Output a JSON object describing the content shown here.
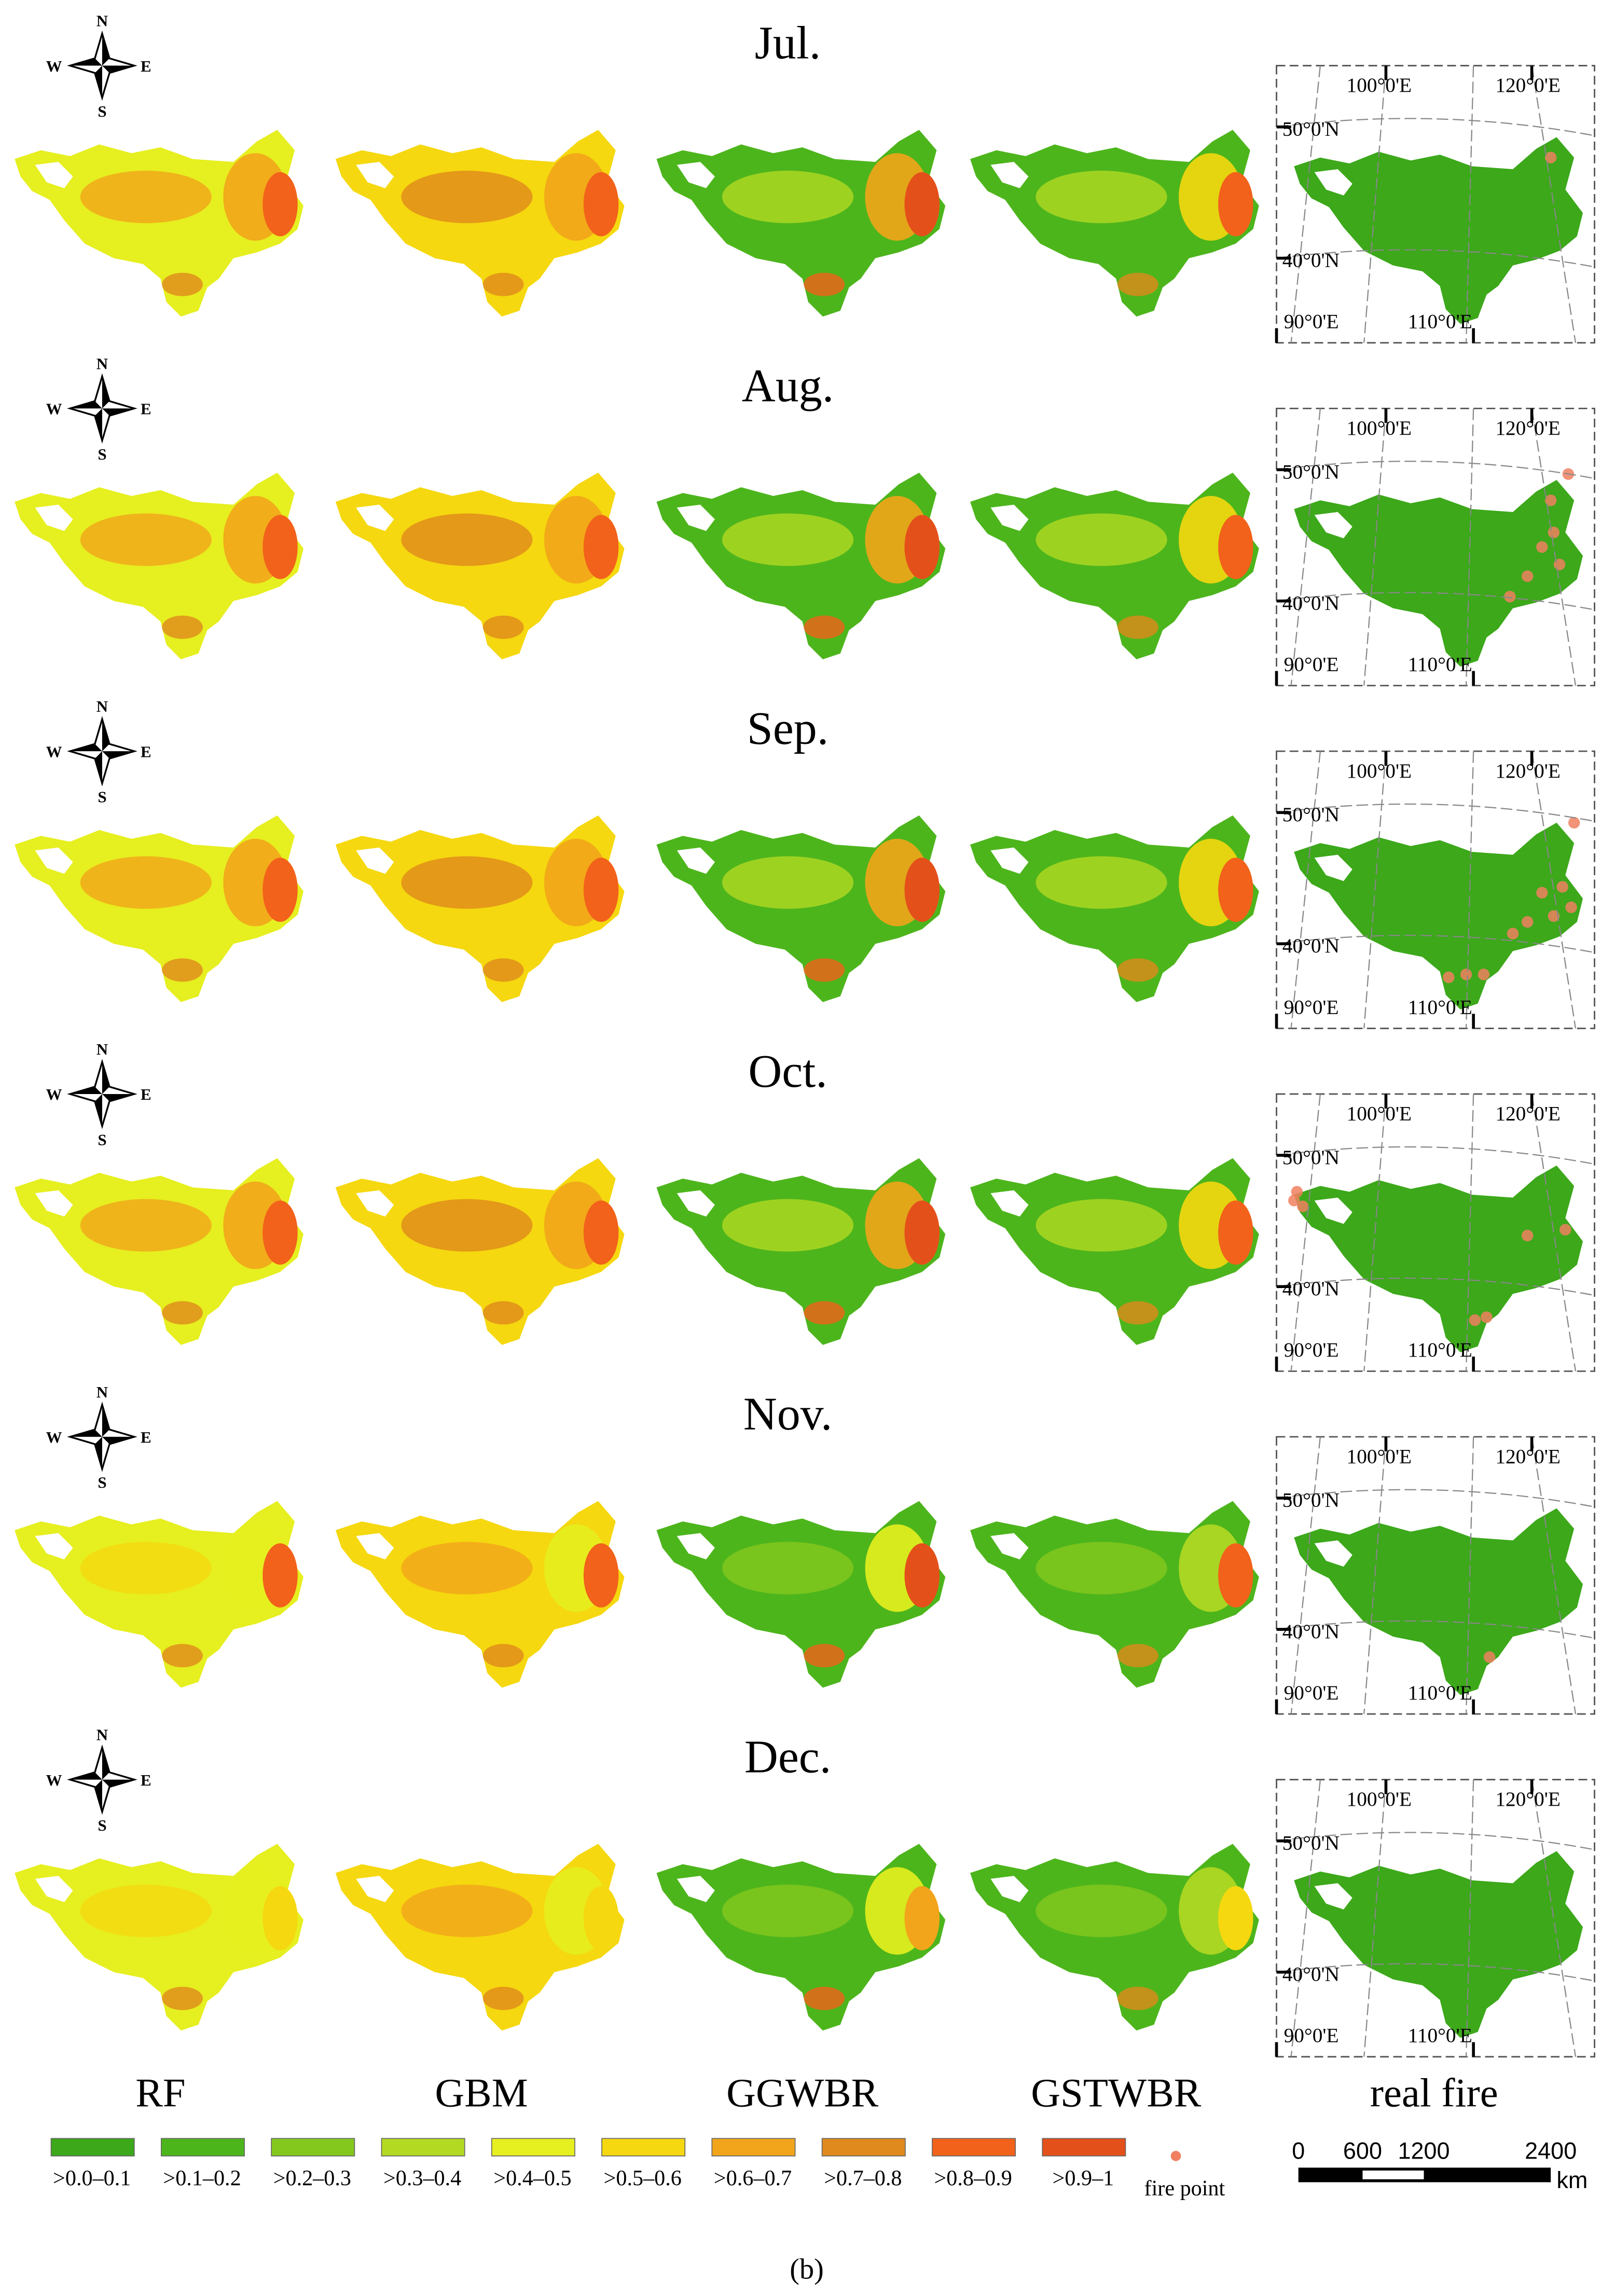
{
  "months": [
    "Jul.",
    "Aug.",
    "Sep.",
    "Oct.",
    "Nov.",
    "Dec."
  ],
  "models": [
    "RF",
    "GBM",
    "GGWBR",
    "GSTWBR",
    "real fire"
  ],
  "compass": {
    "n": "N",
    "s": "S",
    "w": "W",
    "e": "E"
  },
  "map_labels": {
    "lon_100": "100°0'E",
    "lon_120": "120°0'E",
    "lat_50": "50°0'N",
    "lat_40": "40°0'N",
    "lon_90": "90°0'E",
    "lon_110": "110°0'E"
  },
  "legend": {
    "classes": [
      {
        "label": ">0.0–0.1",
        "color": "#3ca81a"
      },
      {
        "label": ">0.1–0.2",
        "color": "#4db51c"
      },
      {
        "label": ">0.2–0.3",
        "color": "#84c81e"
      },
      {
        "label": ">0.3–0.4",
        "color": "#b3d923"
      },
      {
        "label": ">0.4–0.5",
        "color": "#e6ef1f"
      },
      {
        "label": ">0.5–0.6",
        "color": "#f5d80f"
      },
      {
        "label": ">0.6–0.7",
        "color": "#f2a51a"
      },
      {
        "label": ">0.7–0.8",
        "color": "#e0891c"
      },
      {
        "label": ">0.8–0.9",
        "color": "#f2621a"
      },
      {
        "label": ">0.9–1",
        "color": "#e4501a"
      }
    ],
    "fire_point": "fire point",
    "fire_point_color": "#f08060"
  },
  "scale_bar": {
    "labels": [
      "0",
      "600",
      "1200",
      "2400"
    ],
    "unit": "km"
  },
  "caption": "(b)"
}
